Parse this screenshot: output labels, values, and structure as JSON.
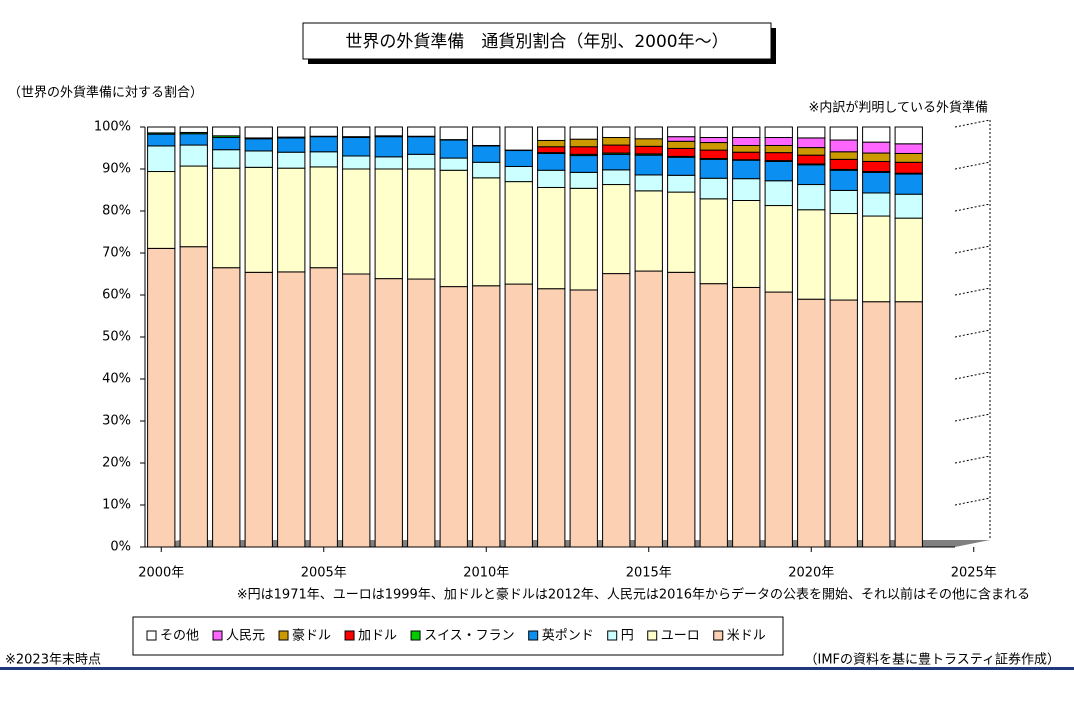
{
  "chart_data": {
    "type": "stacked-bar",
    "title": "世界の外貨準備　通貨別割合（年別、2000年～）",
    "y_label": "（世界の外貨準備に対する割合）",
    "annotations": [
      "※内訳が判明している外貨準備",
      "※円は1971年、ユーロは1999年、加ドルと豪ドルは2012年、人民元は2016年からデータの公表を開始、それ以前はその他に含まれる",
      "※2023年末時点",
      "（IMFの資料を基に豊トラスティ証券作成）"
    ],
    "x": [
      2000,
      2001,
      2002,
      2003,
      2004,
      2005,
      2006,
      2007,
      2008,
      2009,
      2010,
      2011,
      2012,
      2013,
      2014,
      2015,
      2016,
      2017,
      2018,
      2019,
      2020,
      2021,
      2022,
      2023
    ],
    "xlim": [
      1999.5,
      2025.5
    ],
    "xticks": [
      {
        "value": 2000,
        "label": "2000年"
      },
      {
        "value": 2005,
        "label": "2005年"
      },
      {
        "value": 2010,
        "label": "2010年"
      },
      {
        "value": 2015,
        "label": "2015年"
      },
      {
        "value": 2020,
        "label": "2020年"
      },
      {
        "value": 2025,
        "label": "2025年"
      }
    ],
    "ylim": [
      0,
      100
    ],
    "yticks": [
      {
        "value": 0,
        "label": "0%"
      },
      {
        "value": 10,
        "label": "10%"
      },
      {
        "value": 20,
        "label": "20%"
      },
      {
        "value": 30,
        "label": "30%"
      },
      {
        "value": 40,
        "label": "40%"
      },
      {
        "value": 50,
        "label": "50%"
      },
      {
        "value": 60,
        "label": "60%"
      },
      {
        "value": 70,
        "label": "70%"
      },
      {
        "value": 80,
        "label": "80%"
      },
      {
        "value": 90,
        "label": "90%"
      },
      {
        "value": 100,
        "label": "100%"
      }
    ],
    "grid": false,
    "legend": "bottom",
    "series": [
      {
        "name": "米ドル",
        "color": "#fbd0b3",
        "values": [
          71.1,
          71.5,
          66.5,
          65.4,
          65.5,
          66.5,
          65.0,
          63.9,
          63.8,
          62.0,
          62.2,
          62.6,
          61.5,
          61.2,
          65.1,
          65.7,
          65.4,
          62.7,
          61.8,
          60.7,
          59.0,
          58.8,
          58.4,
          58.4
        ]
      },
      {
        "name": "ユーロ",
        "color": "#ffffcc",
        "values": [
          18.3,
          19.2,
          23.7,
          25.0,
          24.7,
          24.0,
          25.0,
          26.1,
          26.2,
          27.7,
          25.7,
          24.4,
          24.1,
          24.2,
          21.2,
          19.1,
          19.1,
          20.2,
          20.7,
          20.6,
          21.3,
          20.6,
          20.4,
          19.9
        ]
      },
      {
        "name": "円",
        "color": "#ccffff",
        "values": [
          6.1,
          5.0,
          4.4,
          3.9,
          3.8,
          3.6,
          3.1,
          2.9,
          3.5,
          2.9,
          3.7,
          3.6,
          4.1,
          3.8,
          3.5,
          3.8,
          4.0,
          4.9,
          5.2,
          5.9,
          6.0,
          5.5,
          5.5,
          5.7
        ]
      },
      {
        "name": "英ポンド",
        "color": "#0b8ff0",
        "values": [
          2.8,
          2.7,
          2.9,
          2.9,
          3.4,
          3.6,
          4.4,
          4.8,
          4.2,
          4.3,
          3.9,
          3.8,
          4.0,
          4.0,
          3.7,
          4.7,
          4.3,
          4.5,
          4.4,
          4.6,
          4.7,
          4.8,
          4.9,
          4.8
        ]
      },
      {
        "name": "スイス・フラン",
        "color": "#00cc00",
        "values": [
          0.3,
          0.3,
          0.4,
          0.2,
          0.2,
          0.1,
          0.2,
          0.2,
          0.1,
          0.1,
          0.1,
          0.1,
          0.2,
          0.3,
          0.3,
          0.3,
          0.2,
          0.2,
          0.1,
          0.2,
          0.2,
          0.2,
          0.2,
          0.2
        ]
      },
      {
        "name": "加ドル",
        "color": "#ff0000",
        "values": [
          null,
          null,
          null,
          null,
          null,
          null,
          null,
          null,
          null,
          null,
          null,
          null,
          1.4,
          1.8,
          1.9,
          1.8,
          1.9,
          2.0,
          1.8,
          1.9,
          2.1,
          2.4,
          2.4,
          2.6
        ]
      },
      {
        "name": "豪ドル",
        "color": "#cc9900",
        "values": [
          null,
          null,
          null,
          null,
          null,
          null,
          null,
          null,
          null,
          null,
          null,
          null,
          1.5,
          1.8,
          1.8,
          1.8,
          1.7,
          1.8,
          1.6,
          1.7,
          1.8,
          1.8,
          2.0,
          2.1
        ]
      },
      {
        "name": "人民元",
        "color": "#ff66ff",
        "values": [
          null,
          null,
          null,
          null,
          null,
          null,
          null,
          null,
          null,
          null,
          null,
          null,
          null,
          null,
          null,
          null,
          1.1,
          1.2,
          1.9,
          1.9,
          2.3,
          2.8,
          2.6,
          2.3
        ]
      },
      {
        "name": "その他",
        "color": "#ffffff",
        "values": [
          1.4,
          1.3,
          2.1,
          2.6,
          2.4,
          2.2,
          2.3,
          2.1,
          2.2,
          3.0,
          4.4,
          5.5,
          3.2,
          2.9,
          2.5,
          2.8,
          2.3,
          2.5,
          2.5,
          2.5,
          2.6,
          3.1,
          3.6,
          4.0
        ]
      }
    ]
  }
}
